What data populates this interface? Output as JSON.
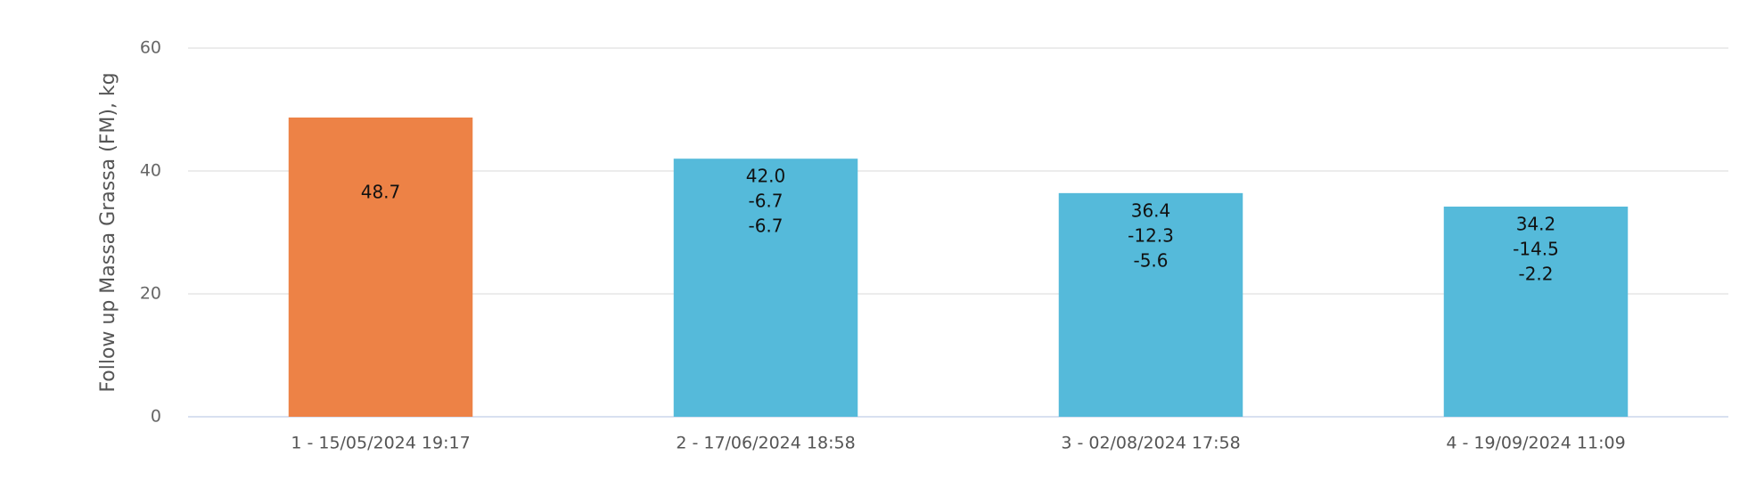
{
  "chart_data": {
    "type": "bar",
    "y_axis_label": "Follow up Massa Grassa (FM), kg",
    "categories": [
      "1 - 15/05/2024 19:17",
      "2 - 17/06/2024 18:58",
      "3 - 02/08/2024 17:58",
      "4 - 19/09/2024 11:09"
    ],
    "values": [
      48.7,
      42.0,
      36.4,
      34.2
    ],
    "value_labels": [
      "48.7",
      "42.0",
      "36.4",
      "34.2"
    ],
    "change_from_first": [
      null,
      -6.7,
      -12.3,
      -14.5
    ],
    "change_from_previous": [
      null,
      -6.7,
      -5.6,
      -2.2
    ],
    "colors": [
      "#ed8246",
      "#55bada",
      "#55bada",
      "#55bada"
    ],
    "ylim": [
      0,
      60
    ],
    "yticks": [
      0,
      20,
      40,
      60
    ],
    "grid": true
  }
}
